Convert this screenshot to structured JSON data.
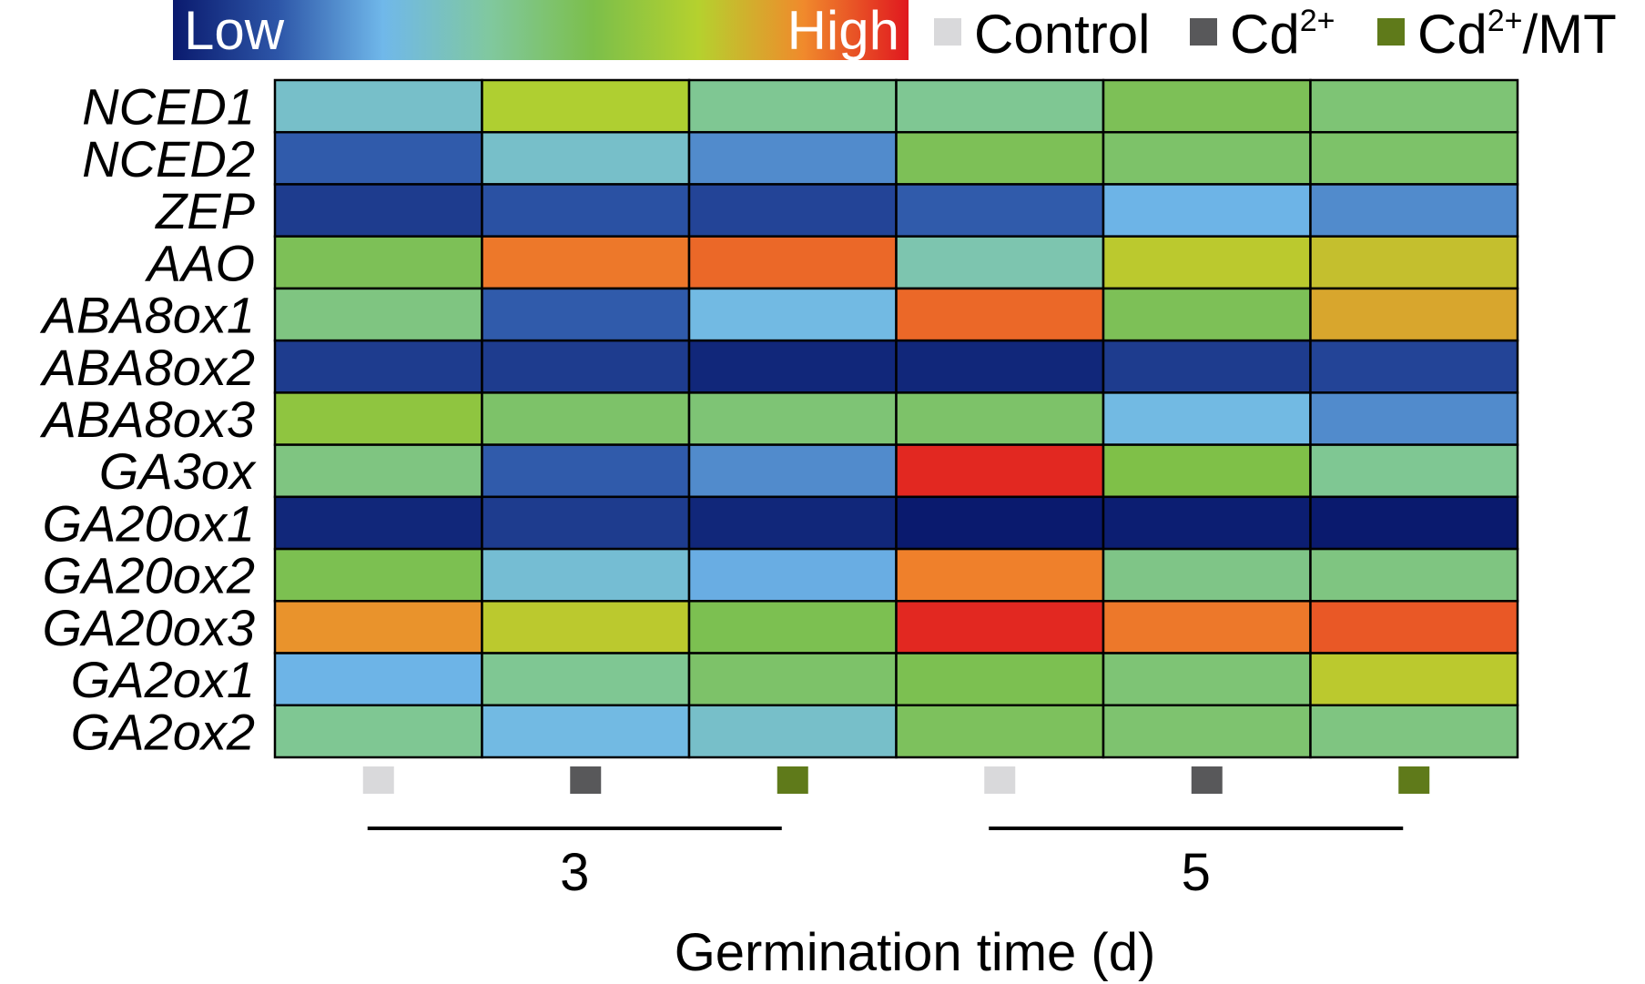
{
  "chart_data": {
    "type": "heatmap",
    "color_scale": {
      "low_label": "Low",
      "high_label": "High",
      "colors": [
        "#0a1a6e",
        "#2d56a8",
        "#70b8ea",
        "#80c8a0",
        "#7cbf4a",
        "#b5d12e",
        "#f08a2c",
        "#e0181f"
      ]
    },
    "legend": [
      {
        "label": "Control",
        "sup": "",
        "suffix": "",
        "color": "#d9d9db"
      },
      {
        "label": "Cd",
        "sup": "2+",
        "suffix": "",
        "color": "#58585a"
      },
      {
        "label": "Cd",
        "sup": "2+",
        "suffix": "/MT",
        "color": "#5f7a1a"
      }
    ],
    "rows": [
      "NCED1",
      "NCED2",
      "ZEP",
      "AAO",
      "ABA8ox1",
      "ABA8ox2",
      "ABA8ox3",
      "GA3ox",
      "GA20ox1",
      "GA20ox2",
      "GA20ox3",
      "GA2ox1",
      "GA2ox2"
    ],
    "columns": [
      {
        "group": "3",
        "treatment": "Control"
      },
      {
        "group": "3",
        "treatment": "Cd2+"
      },
      {
        "group": "3",
        "treatment": "Cd2+/MT"
      },
      {
        "group": "5",
        "treatment": "Control"
      },
      {
        "group": "5",
        "treatment": "Cd2+"
      },
      {
        "group": "5",
        "treatment": "Cd2+/MT"
      }
    ],
    "values": [
      [
        0.35,
        0.7,
        0.45,
        0.45,
        0.55,
        0.5
      ],
      [
        0.15,
        0.35,
        0.22,
        0.55,
        0.52,
        0.52
      ],
      [
        0.08,
        0.13,
        0.1,
        0.15,
        0.28,
        0.22
      ],
      [
        0.55,
        0.88,
        0.9,
        0.4,
        0.73,
        0.75
      ],
      [
        0.48,
        0.15,
        0.3,
        0.9,
        0.55,
        0.8
      ],
      [
        0.08,
        0.08,
        0.03,
        0.03,
        0.08,
        0.1
      ],
      [
        0.62,
        0.52,
        0.5,
        0.52,
        0.3,
        0.22
      ],
      [
        0.48,
        0.15,
        0.22,
        0.98,
        0.58,
        0.45
      ],
      [
        0.03,
        0.08,
        0.03,
        0.0,
        0.01,
        0.0
      ],
      [
        0.56,
        0.33,
        0.27,
        0.87,
        0.47,
        0.48
      ],
      [
        0.84,
        0.73,
        0.56,
        0.98,
        0.88,
        0.92
      ],
      [
        0.28,
        0.45,
        0.52,
        0.56,
        0.5,
        0.73
      ],
      [
        0.45,
        0.3,
        0.35,
        0.54,
        0.51,
        0.48
      ]
    ],
    "groups": [
      "3",
      "5"
    ],
    "xlabel": "Germination time (d)"
  }
}
